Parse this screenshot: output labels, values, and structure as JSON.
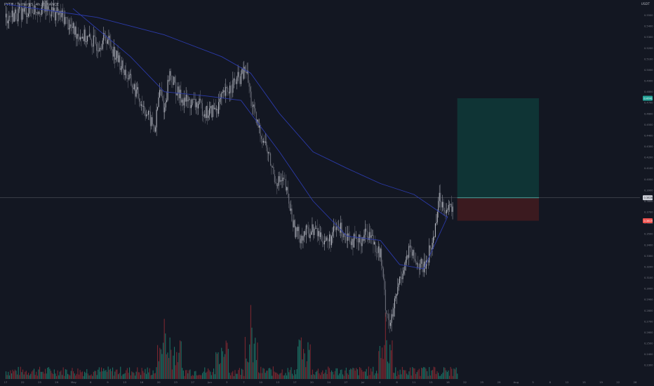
{
  "header": {
    "symbol_line": "PYTH / TetherUS, 4h, BINANCE",
    "currency": "USDT"
  },
  "colors": {
    "background": "#131722",
    "up_candle": "#b2b5be",
    "down_candle": "#6a6d78",
    "ma_line": "#2b3aa8",
    "volume_up": "#1b6f63",
    "volume_down": "#7a2730",
    "target_zone": "#0f3a38",
    "stop_zone": "#3d1a20",
    "target_badge": "#26a69a",
    "stop_badge": "#ef5350",
    "price_line": "#9598a1"
  },
  "chart_data": {
    "type": "candlestick",
    "title": "PYTH / TetherUS, 4h, BINANCE",
    "x_tick_labels": [
      "17",
      "22",
      "25",
      "29",
      "May",
      "6",
      "9",
      "13",
      "16",
      "20",
      "23",
      "27",
      "Jun",
      "3",
      "7",
      "10",
      "13",
      "17",
      "20",
      "24",
      "27",
      "Jul",
      "4",
      "8",
      "11",
      "15",
      "18",
      "22",
      "25",
      "29",
      "Aug",
      "5",
      "8",
      "12",
      "15",
      "19",
      "22",
      "26"
    ],
    "y_tick_labels": [
      "0.5500",
      "0.5400",
      "0.5300",
      "0.5200",
      "0.5100",
      "0.5000",
      "0.4900",
      "0.4800",
      "0.4700",
      "0.4600",
      "0.4500",
      "0.4400",
      "0.4300",
      "0.4200",
      "0.4100",
      "0.4000",
      "0.3900",
      "0.3800",
      "0.3700",
      "0.3600",
      "0.3500",
      "0.3400",
      "0.3300",
      "0.3200",
      "0.3100",
      "0.3000",
      "0.2900",
      "0.2800",
      "0.2700",
      "0.2600",
      "0.2500",
      "0.2400",
      "0.2300"
    ],
    "ylim": [
      0.225,
      0.56
    ],
    "price_path": [
      {
        "x": "Apr 17",
        "y": 0.548
      },
      {
        "x": "Apr 22",
        "y": 0.555
      },
      {
        "x": "Apr 25",
        "y": 0.557
      },
      {
        "x": "Apr 29",
        "y": 0.548
      },
      {
        "x": "May 1",
        "y": 0.536
      },
      {
        "x": "May 6",
        "y": 0.523
      },
      {
        "x": "May 8",
        "y": 0.53
      },
      {
        "x": "May 10",
        "y": 0.512
      },
      {
        "x": "May 13",
        "y": 0.488
      },
      {
        "x": "May 15",
        "y": 0.472
      },
      {
        "x": "May 18",
        "y": 0.445
      },
      {
        "x": "May 19",
        "y": 0.482
      },
      {
        "x": "May 20",
        "y": 0.463
      },
      {
        "x": "May 21",
        "y": 0.498
      },
      {
        "x": "May 23",
        "y": 0.476
      },
      {
        "x": "May 25",
        "y": 0.47
      },
      {
        "x": "May 27",
        "y": 0.468
      },
      {
        "x": "May 29",
        "y": 0.46
      },
      {
        "x": "May 31",
        "y": 0.466
      },
      {
        "x": "Jun 1",
        "y": 0.474
      },
      {
        "x": "Jun 3",
        "y": 0.486
      },
      {
        "x": "Jun 5",
        "y": 0.494
      },
      {
        "x": "Jun 6",
        "y": 0.5
      },
      {
        "x": "Jun 7",
        "y": 0.472
      },
      {
        "x": "Jun 8",
        "y": 0.453
      },
      {
        "x": "Jun 10",
        "y": 0.432
      },
      {
        "x": "Jun 12",
        "y": 0.4
      },
      {
        "x": "Jun 14",
        "y": 0.396
      },
      {
        "x": "Jun 16",
        "y": 0.355
      },
      {
        "x": "Jun 17",
        "y": 0.348
      },
      {
        "x": "Jun 20",
        "y": 0.354
      },
      {
        "x": "Jun 23",
        "y": 0.342
      },
      {
        "x": "Jun 25",
        "y": 0.356
      },
      {
        "x": "Jun 27",
        "y": 0.35
      },
      {
        "x": "Jun 29",
        "y": 0.34
      },
      {
        "x": "Jul 1",
        "y": 0.352
      },
      {
        "x": "Jul 2",
        "y": 0.348
      },
      {
        "x": "Jul 4",
        "y": 0.33
      },
      {
        "x": "Jul 5",
        "y": 0.285
      },
      {
        "x": "Jul 6",
        "y": 0.265
      },
      {
        "x": "Jul 8",
        "y": 0.31
      },
      {
        "x": "Jul 9",
        "y": 0.322
      },
      {
        "x": "Jul 10",
        "y": 0.335
      },
      {
        "x": "Jul 11",
        "y": 0.326
      },
      {
        "x": "Jul 13",
        "y": 0.318
      },
      {
        "x": "Jul 14",
        "y": 0.332
      },
      {
        "x": "Jul 15",
        "y": 0.345
      },
      {
        "x": "Jul 16",
        "y": 0.382
      },
      {
        "x": "Jul 17",
        "y": 0.378
      },
      {
        "x": "Jul 18",
        "y": 0.37
      },
      {
        "x": "Jul 19",
        "y": 0.376
      }
    ],
    "indicators": [
      {
        "name": "MA (slow)",
        "values": [
          {
            "x": "Apr 17",
            "y": 0.56
          },
          {
            "x": "May 6",
            "y": 0.548
          },
          {
            "x": "May 20",
            "y": 0.532
          },
          {
            "x": "Jun 1",
            "y": 0.512
          },
          {
            "x": "Jun 7",
            "y": 0.497
          },
          {
            "x": "Jun 13",
            "y": 0.46
          },
          {
            "x": "Jun 20",
            "y": 0.425
          },
          {
            "x": "Jun 27",
            "y": 0.41
          },
          {
            "x": "Jul 4",
            "y": 0.396
          },
          {
            "x": "Jul 11",
            "y": 0.386
          },
          {
            "x": "Jul 18",
            "y": 0.365
          }
        ]
      },
      {
        "name": "MA (fast)",
        "values": [
          {
            "x": "May 1",
            "y": 0.556
          },
          {
            "x": "May 13",
            "y": 0.512
          },
          {
            "x": "May 20",
            "y": 0.48
          },
          {
            "x": "May 29",
            "y": 0.476
          },
          {
            "x": "Jun 5",
            "y": 0.472
          },
          {
            "x": "Jun 13",
            "y": 0.425
          },
          {
            "x": "Jun 20",
            "y": 0.38
          },
          {
            "x": "Jun 27",
            "y": 0.348
          },
          {
            "x": "Jul 4",
            "y": 0.344
          },
          {
            "x": "Jul 8",
            "y": 0.322
          },
          {
            "x": "Jul 13",
            "y": 0.318
          },
          {
            "x": "Jul 18",
            "y": 0.366
          }
        ]
      }
    ],
    "current_price": 0.383,
    "position": {
      "side": "long",
      "entry": 0.383,
      "target": 0.474,
      "stop": 0.362
    },
    "price_labels": {
      "target": "0.4741",
      "entry": "0.3828",
      "stop": "0.3619"
    },
    "volume_note": "volume histogram along bottom; spikes near May 20, Jun 7, Jul 5",
    "grid": false
  }
}
